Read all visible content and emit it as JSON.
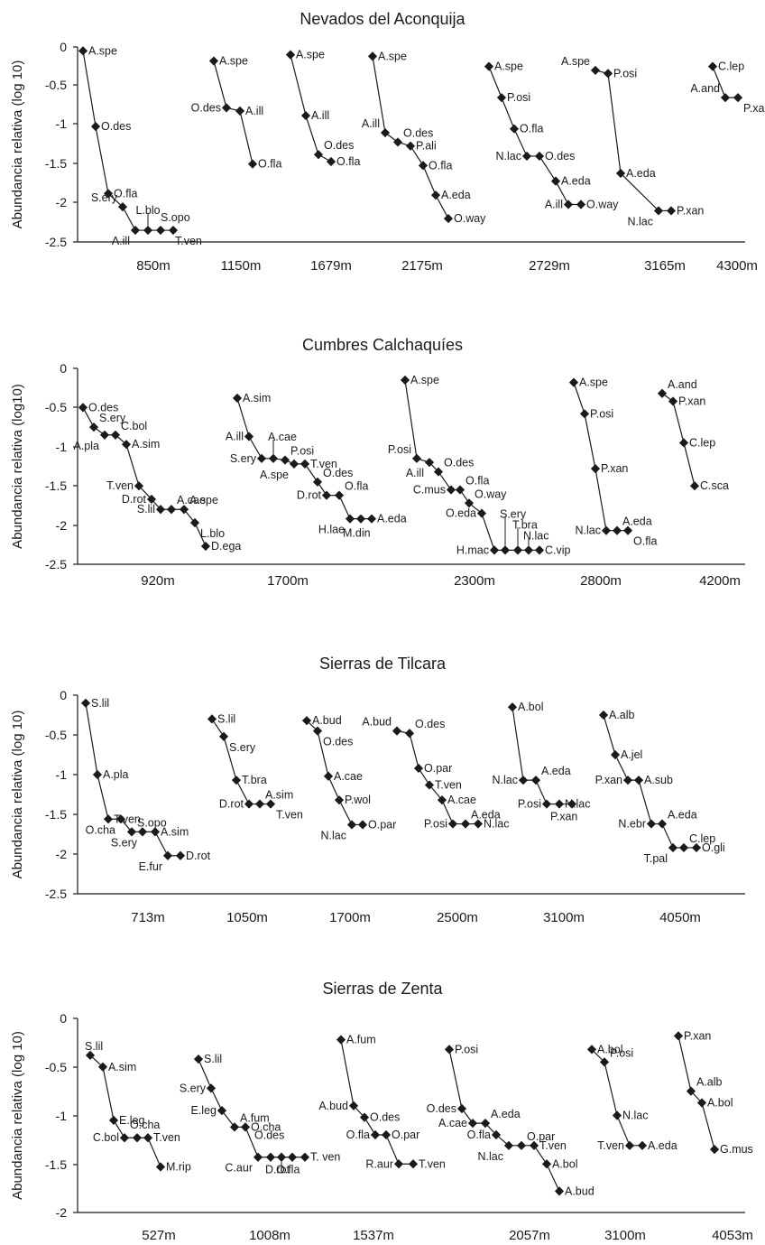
{
  "chart_data": [
    {
      "type": "line",
      "title": "Nevados del Aconquija",
      "ylabel": "Abundancia relativa (log 10)",
      "ylim": [
        -2.5,
        0
      ],
      "yticks": [
        "0",
        "-0.5",
        "-1",
        "-1.5",
        "-2",
        "-2.5"
      ],
      "categories": [
        "850m",
        "1150m",
        "1679m",
        "2175m",
        "2729m",
        "3165m",
        "4300m"
      ],
      "series": [
        {
          "points": [
            {
              "label": "A.spe",
              "y": -0.05
            },
            {
              "label": "O.des",
              "y": -1.02
            },
            {
              "label": "O.fla",
              "y": -1.88
            },
            {
              "label": "S.ery",
              "y": -2.05
            },
            {
              "label": "A.ill",
              "y": -2.35
            },
            {
              "label": "L.blo",
              "y": -2.35
            },
            {
              "label": "S.opo",
              "y": -2.35
            },
            {
              "label": "T.ven",
              "y": -2.35
            }
          ]
        },
        {
          "points": [
            {
              "label": "A.spe",
              "y": -0.18
            },
            {
              "label": "O.des",
              "y": -0.78
            },
            {
              "label": "A.ill",
              "y": -0.82
            },
            {
              "label": "O.fla",
              "y": -1.5
            }
          ]
        },
        {
          "points": [
            {
              "label": "A.spe",
              "y": -0.1
            },
            {
              "label": "A.ill",
              "y": -0.88
            },
            {
              "label": "O.des",
              "y": -1.38
            },
            {
              "label": "O.fla",
              "y": -1.47
            }
          ]
        },
        {
          "points": [
            {
              "label": "A.spe",
              "y": -0.12
            },
            {
              "label": "A.ill",
              "y": -1.1
            },
            {
              "label": "O.des",
              "y": -1.22
            },
            {
              "label": "P.ali",
              "y": -1.27
            },
            {
              "label": "O.fla",
              "y": -1.52
            },
            {
              "label": "A.eda",
              "y": -1.9
            },
            {
              "label": "O.way",
              "y": -2.2
            }
          ]
        },
        {
          "points": [
            {
              "label": "A.spe",
              "y": -0.25
            },
            {
              "label": "P.osi",
              "y": -0.65
            },
            {
              "label": "O.fla",
              "y": -1.05
            },
            {
              "label": "N.lac",
              "y": -1.4
            },
            {
              "label": "O.des",
              "y": -1.4
            },
            {
              "label": "A.eda",
              "y": -1.72
            },
            {
              "label": "A.ill",
              "y": -2.02
            },
            {
              "label": "O.way",
              "y": -2.02
            }
          ]
        },
        {
          "points": [
            {
              "label": "A.spe",
              "y": -0.3
            },
            {
              "label": "P.osi",
              "y": -0.34
            },
            {
              "label": "A.eda",
              "y": -1.62
            },
            {
              "label": "N.lac",
              "y": -2.1
            },
            {
              "label": "P.xan",
              "y": -2.1
            }
          ]
        },
        {
          "points": [
            {
              "label": "C.lep",
              "y": -0.25
            },
            {
              "label": "A.and",
              "y": -0.65
            },
            {
              "label": "P.xan",
              "y": -0.65
            }
          ]
        }
      ]
    },
    {
      "type": "line",
      "title": "Cumbres Calchaquíes",
      "ylabel": "Abundancia relativa (log10)",
      "ylim": [
        -2.5,
        0
      ],
      "yticks": [
        "0",
        "-0.5",
        "-1",
        "-1.5",
        "-2",
        "-2.5"
      ],
      "categories": [
        "920m",
        "1700m",
        "2300m",
        "2800m",
        "4200m"
      ],
      "series": [
        {
          "points": [
            {
              "label": "O.des",
              "y": -0.5
            },
            {
              "label": "S.ery",
              "y": -0.75
            },
            {
              "label": "A.pla",
              "y": -0.85
            },
            {
              "label": "C.bol",
              "y": -0.85
            },
            {
              "label": "A.sim",
              "y": -0.97
            },
            {
              "label": "T.ven",
              "y": -1.5
            },
            {
              "label": "D.rot",
              "y": -1.67
            },
            {
              "label": "S.lil",
              "y": -1.8
            },
            {
              "label": "A.cae",
              "y": -1.8
            },
            {
              "label": "A.spe",
              "y": -1.8
            },
            {
              "label": "L.blo",
              "y": -1.97
            },
            {
              "label": "D.ega",
              "y": -2.27
            }
          ]
        },
        {
          "points": [
            {
              "label": "A.sim",
              "y": -0.38
            },
            {
              "label": "A.ill",
              "y": -0.87
            },
            {
              "label": "S.ery",
              "y": -1.15
            },
            {
              "label": "A.cae",
              "y": -1.15
            },
            {
              "label": "P.osi",
              "y": -1.17
            },
            {
              "label": "A.spe",
              "y": -1.22
            },
            {
              "label": "T.ven",
              "y": -1.22
            },
            {
              "label": "O.des",
              "y": -1.45
            },
            {
              "label": "D.rot",
              "y": -1.62
            },
            {
              "label": "O.fla",
              "y": -1.62
            },
            {
              "label": "H.lae",
              "y": -1.92
            },
            {
              "label": "M.din",
              "y": -1.92
            },
            {
              "label": "A.eda",
              "y": -1.92
            }
          ]
        },
        {
          "points": [
            {
              "label": "A.spe",
              "y": -0.15
            },
            {
              "label": "P.osi",
              "y": -1.15
            },
            {
              "label": "A.ill",
              "y": -1.2
            },
            {
              "label": "O.des",
              "y": -1.32
            },
            {
              "label": "C.mus",
              "y": -1.55
            },
            {
              "label": "O.fla",
              "y": -1.55
            },
            {
              "label": "O.way",
              "y": -1.72
            },
            {
              "label": "O.eda",
              "y": -1.85
            },
            {
              "label": "H.mac",
              "y": -2.32
            },
            {
              "label": "S.ery",
              "y": -2.32
            },
            {
              "label": "T.bra",
              "y": -2.32
            },
            {
              "label": "N.lac",
              "y": -2.32
            },
            {
              "label": "C.vip",
              "y": -2.32
            }
          ]
        },
        {
          "points": [
            {
              "label": "A.spe",
              "y": -0.18
            },
            {
              "label": "P.osi",
              "y": -0.58
            },
            {
              "label": "P.xan",
              "y": -1.28
            },
            {
              "label": "N.lac",
              "y": -2.07
            },
            {
              "label": "A.eda",
              "y": -2.07
            },
            {
              "label": "O.fla",
              "y": -2.07
            }
          ]
        },
        {
          "points": [
            {
              "label": "A.and",
              "y": -0.32
            },
            {
              "label": "P.xan",
              "y": -0.42
            },
            {
              "label": "C.lep",
              "y": -0.95
            },
            {
              "label": "C.sca",
              "y": -1.5
            }
          ]
        }
      ]
    },
    {
      "type": "line",
      "title": "Sierras de Tilcara",
      "ylabel": "Abundancia relativa (log 10)",
      "ylim": [
        -2.5,
        0
      ],
      "yticks": [
        "0",
        "-0.5",
        "-1",
        "-1.5",
        "-2",
        "-2.5"
      ],
      "categories": [
        "713m",
        "1050m",
        "1700m",
        "2500m",
        "3100m",
        "4050m"
      ],
      "series": [
        {
          "points": [
            {
              "label": "S.lil",
              "y": -0.1
            },
            {
              "label": "A.pla",
              "y": -1.0
            },
            {
              "label": "T.ven",
              "y": -1.56
            },
            {
              "label": "O.cha",
              "y": -1.56
            },
            {
              "label": "S.opo",
              "y": -1.72
            },
            {
              "label": "S.ery",
              "y": -1.72
            },
            {
              "label": "A.sim",
              "y": -1.72
            },
            {
              "label": "E.fur",
              "y": -2.02
            },
            {
              "label": "D.rot",
              "y": -2.02
            }
          ]
        },
        {
          "points": [
            {
              "label": "S.lil",
              "y": -0.3
            },
            {
              "label": "S.ery",
              "y": -0.52
            },
            {
              "label": "T.bra",
              "y": -1.07
            },
            {
              "label": "D.rot",
              "y": -1.37
            },
            {
              "label": "A.sim",
              "y": -1.37
            },
            {
              "label": "T.ven",
              "y": -1.37
            }
          ]
        },
        {
          "points": [
            {
              "label": "A.bud",
              "y": -0.32
            },
            {
              "label": "O.des",
              "y": -0.45
            },
            {
              "label": "A.cae",
              "y": -1.02
            },
            {
              "label": "P.wol",
              "y": -1.32
            },
            {
              "label": "N.lac",
              "y": -1.63
            },
            {
              "label": "O.par",
              "y": -1.63
            }
          ]
        },
        {
          "points": [
            {
              "label": "A.bud",
              "y": -0.45
            },
            {
              "label": "O.des",
              "y": -0.48
            },
            {
              "label": "O.par",
              "y": -0.92
            },
            {
              "label": "T.ven",
              "y": -1.13
            },
            {
              "label": "A.cae",
              "y": -1.32
            },
            {
              "label": "P.osi",
              "y": -1.62
            },
            {
              "label": "A.eda",
              "y": -1.62
            },
            {
              "label": "N.lac",
              "y": -1.62
            }
          ]
        },
        {
          "points": [
            {
              "label": "A.bol",
              "y": -0.15
            },
            {
              "label": "N.lac",
              "y": -1.07
            },
            {
              "label": "A.eda",
              "y": -1.07
            },
            {
              "label": "P.osi",
              "y": -1.37
            },
            {
              "label": "N.lac",
              "y": -1.37
            },
            {
              "label": "P.xan",
              "y": -1.37
            }
          ]
        },
        {
          "points": [
            {
              "label": "A.alb",
              "y": -0.25
            },
            {
              "label": "A.jel",
              "y": -0.75
            },
            {
              "label": "P.xan",
              "y": -1.07
            },
            {
              "label": "A.sub",
              "y": -1.07
            },
            {
              "label": "N.ebr",
              "y": -1.62
            },
            {
              "label": "A.eda",
              "y": -1.62
            },
            {
              "label": "T.pal",
              "y": -1.92
            },
            {
              "label": "C.lep",
              "y": -1.92
            },
            {
              "label": "O.gli",
              "y": -1.92
            }
          ]
        }
      ]
    },
    {
      "type": "line",
      "title": "Sierras de Zenta",
      "ylabel": "Abundancia relativa (log 10)",
      "ylim": [
        -2,
        0
      ],
      "yticks": [
        "0",
        "-0.5",
        "-1",
        "-1.5",
        "-2"
      ],
      "categories": [
        "527m",
        "1008m",
        "1537m",
        "2057m",
        "3100m",
        "4053m"
      ],
      "series": [
        {
          "points": [
            {
              "label": "S.lil",
              "y": -0.38
            },
            {
              "label": "A.sim",
              "y": -0.5
            },
            {
              "label": "E.leg",
              "y": -1.05
            },
            {
              "label": "C.bol",
              "y": -1.23
            },
            {
              "label": "O.cha",
              "y": -1.23
            },
            {
              "label": "T.ven",
              "y": -1.23
            },
            {
              "label": "M.rip",
              "y": -1.53
            }
          ]
        },
        {
          "points": [
            {
              "label": "S.lil",
              "y": -0.42
            },
            {
              "label": "S.ery",
              "y": -0.72
            },
            {
              "label": "E.leg",
              "y": -0.95
            },
            {
              "label": "A.fum",
              "y": -1.12
            },
            {
              "label": "O.cha",
              "y": -1.12
            },
            {
              "label": "C.aur",
              "y": -1.43
            },
            {
              "label": "O.des",
              "y": -1.43
            },
            {
              "label": "D.rot",
              "y": -1.43
            },
            {
              "label": "O.fla",
              "y": -1.43
            },
            {
              "label": "T. ven",
              "y": -1.43
            }
          ]
        },
        {
          "points": [
            {
              "label": "A.fum",
              "y": -0.22
            },
            {
              "label": "A.bud",
              "y": -0.9
            },
            {
              "label": "O.des",
              "y": -1.02
            },
            {
              "label": "O.fla",
              "y": -1.2
            },
            {
              "label": "O.par",
              "y": -1.2
            },
            {
              "label": "R.aur",
              "y": -1.5
            },
            {
              "label": "T.ven",
              "y": -1.5
            }
          ]
        },
        {
          "points": [
            {
              "label": "P.osi",
              "y": -0.32
            },
            {
              "label": "O.des",
              "y": -0.93
            },
            {
              "label": "A.cae",
              "y": -1.08
            },
            {
              "label": "A.eda",
              "y": -1.08
            },
            {
              "label": "O.fla",
              "y": -1.2
            },
            {
              "label": "N.lac",
              "y": -1.31
            },
            {
              "label": "O.par",
              "y": -1.31
            },
            {
              "label": "T.ven",
              "y": -1.31
            },
            {
              "label": "A.bol",
              "y": -1.5
            },
            {
              "label": "A.bud",
              "y": -1.78
            }
          ]
        },
        {
          "points": [
            {
              "label": "A.bol",
              "y": -0.32
            },
            {
              "label": "P.osi",
              "y": -0.45
            },
            {
              "label": "N.lac",
              "y": -1.0
            },
            {
              "label": "T.ven",
              "y": -1.31
            },
            {
              "label": "A.eda",
              "y": -1.31
            }
          ]
        },
        {
          "points": [
            {
              "label": "P.xan",
              "y": -0.18
            },
            {
              "label": "A.alb",
              "y": -0.75
            },
            {
              "label": "A.bol",
              "y": -0.87
            },
            {
              "label": "G.mus",
              "y": -1.35
            }
          ]
        }
      ]
    }
  ]
}
